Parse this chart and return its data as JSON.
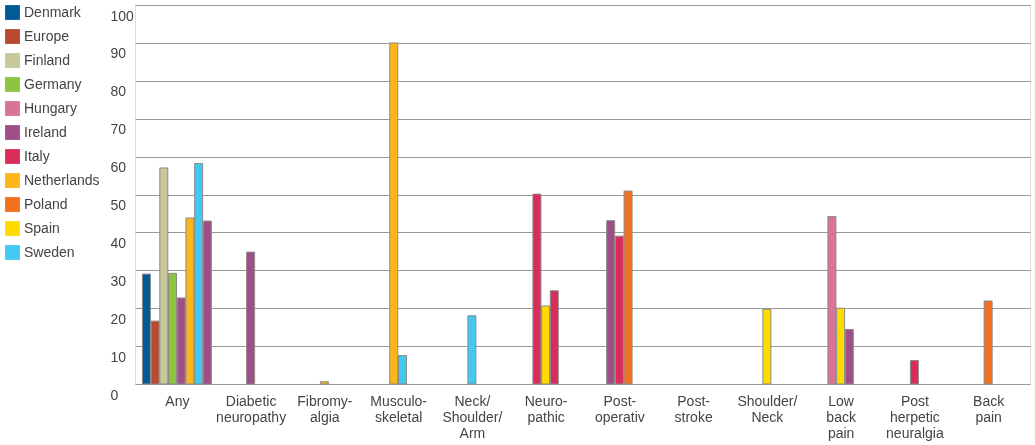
{
  "chart_data": {
    "type": "bar",
    "categories": [
      "Any",
      "Diabetic neuropathy",
      "Fibromy-algia",
      "Musculo-skeletal",
      "Neck/Shoulder/Arm",
      "Neuro-pathic",
      "Post-operativ",
      "Post-stroke",
      "Shoulder/Neck",
      "Low back pain",
      "Post herpetic neuralgia",
      "Back pain"
    ],
    "series": [
      {
        "name": "Denmark",
        "color": "#005a96",
        "values": [
          29,
          null,
          null,
          null,
          null,
          null,
          null,
          null,
          null,
          null,
          null,
          null
        ]
      },
      {
        "name": "Europe",
        "color": "#b94a2f",
        "values": [
          16.6,
          null,
          null,
          null,
          null,
          null,
          null,
          null,
          null,
          null,
          null,
          null
        ]
      },
      {
        "name": "Finland",
        "color": "#c8c89a",
        "values": [
          57,
          null,
          null,
          null,
          null,
          null,
          null,
          null,
          null,
          null,
          null,
          null
        ]
      },
      {
        "name": "Germany",
        "color": "#8cc43f",
        "values": [
          29.2,
          null,
          null,
          null,
          null,
          null,
          null,
          null,
          null,
          null,
          null,
          null
        ]
      },
      {
        "name": "Hungary",
        "color": "#d67596",
        "values": [
          null,
          null,
          null,
          null,
          null,
          null,
          null,
          null,
          null,
          44.2,
          null,
          null
        ]
      },
      {
        "name": "Ireland",
        "color": "#9d4f86",
        "values": [
          22.7,
          34.8,
          null,
          null,
          null,
          null,
          43.1,
          null,
          null,
          null,
          null,
          null
        ]
      },
      {
        "name": "Italy",
        "color": "#da2c5a",
        "values": [
          null,
          null,
          null,
          null,
          null,
          50.1,
          39,
          null,
          null,
          null,
          6.2,
          null
        ]
      },
      {
        "name": "Netherlands",
        "color": "#fbb61a",
        "values": [
          43.8,
          null,
          0.6,
          90,
          null,
          null,
          null,
          null,
          null,
          null,
          null,
          null
        ]
      },
      {
        "name": "Poland",
        "color": "#f37021",
        "values": [
          null,
          null,
          null,
          null,
          null,
          null,
          50.9,
          null,
          null,
          null,
          null,
          21.9
        ]
      },
      {
        "name": "Spain",
        "color": "#ffdc00",
        "values": [
          null,
          null,
          null,
          null,
          null,
          20.6,
          null,
          null,
          19.7,
          20,
          null,
          null
        ]
      },
      {
        "name": "Sweden",
        "color": "#43c8f2",
        "values": [
          58.2,
          null,
          null,
          7.5,
          18,
          null,
          null,
          null,
          null,
          null,
          null,
          null
        ]
      },
      {
        "color": "#9d4f86",
        "values": [
          43,
          null,
          null,
          null,
          null,
          null,
          null,
          null,
          null,
          14.4,
          null,
          null
        ]
      },
      {
        "color": "#da2c5a",
        "values": [
          null,
          null,
          null,
          null,
          null,
          24.6,
          null,
          null,
          null,
          null,
          null,
          null
        ]
      }
    ],
    "ylim": [
      0,
      100
    ],
    "yticks": [
      0,
      10,
      20,
      30,
      40,
      50,
      60,
      70,
      80,
      90,
      100
    ],
    "grid": "y",
    "legend": "left"
  }
}
